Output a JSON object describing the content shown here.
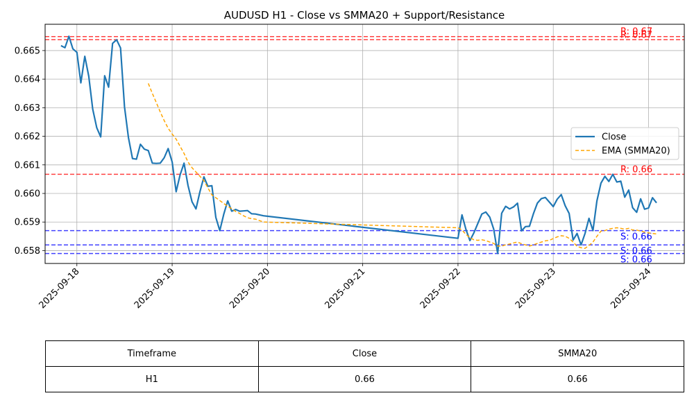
{
  "chart_data": {
    "type": "line",
    "title": "AUDUSD H1 - Close vs SMMA20 + Support/Resistance",
    "xlabel": "",
    "ylabel": "",
    "xlim": [
      "2025-09-17 16:00",
      "2025-09-24 09:00"
    ],
    "ylim": [
      0.65755,
      0.66592
    ],
    "grid": true,
    "x_ticks": [
      "2025-09-18",
      "2025-09-19",
      "2025-09-20",
      "2025-09-21",
      "2025-09-22",
      "2025-09-23",
      "2025-09-24"
    ],
    "y_ticks": [
      "0.658",
      "0.659",
      "0.660",
      "0.661",
      "0.662",
      "0.663",
      "0.664",
      "0.665"
    ],
    "legend_position": "center-right",
    "series": [
      {
        "name": "Close",
        "color": "#1f77b4",
        "style": "solid",
        "x": [
          "2025-09-17 20:00",
          "2025-09-17 21:00",
          "2025-09-17 22:00",
          "2025-09-17 23:00",
          "2025-09-18 00:00",
          "2025-09-18 01:00",
          "2025-09-18 02:00",
          "2025-09-18 03:00",
          "2025-09-18 04:00",
          "2025-09-18 05:00",
          "2025-09-18 06:00",
          "2025-09-18 07:00",
          "2025-09-18 08:00",
          "2025-09-18 09:00",
          "2025-09-18 10:00",
          "2025-09-18 11:00",
          "2025-09-18 12:00",
          "2025-09-18 13:00",
          "2025-09-18 14:00",
          "2025-09-18 15:00",
          "2025-09-18 16:00",
          "2025-09-18 17:00",
          "2025-09-18 18:00",
          "2025-09-18 19:00",
          "2025-09-18 20:00",
          "2025-09-18 21:00",
          "2025-09-18 22:00",
          "2025-09-18 23:00",
          "2025-09-19 00:00",
          "2025-09-19 01:00",
          "2025-09-19 02:00",
          "2025-09-19 03:00",
          "2025-09-19 04:00",
          "2025-09-19 05:00",
          "2025-09-19 06:00",
          "2025-09-19 07:00",
          "2025-09-19 08:00",
          "2025-09-19 09:00",
          "2025-09-19 10:00",
          "2025-09-19 11:00",
          "2025-09-19 12:00",
          "2025-09-19 13:00",
          "2025-09-19 14:00",
          "2025-09-19 15:00",
          "2025-09-19 16:00",
          "2025-09-19 17:00",
          "2025-09-19 18:00",
          "2025-09-19 19:00",
          "2025-09-19 20:00",
          "2025-09-19 21:00",
          "2025-09-19 22:00",
          "2025-09-19 23:00",
          "2025-09-22 00:00",
          "2025-09-22 01:00",
          "2025-09-22 02:00",
          "2025-09-22 03:00",
          "2025-09-22 04:00",
          "2025-09-22 05:00",
          "2025-09-22 06:00",
          "2025-09-22 07:00",
          "2025-09-22 08:00",
          "2025-09-22 09:00",
          "2025-09-22 10:00",
          "2025-09-22 11:00",
          "2025-09-22 12:00",
          "2025-09-22 13:00",
          "2025-09-22 14:00",
          "2025-09-22 15:00",
          "2025-09-22 16:00",
          "2025-09-22 17:00",
          "2025-09-22 18:00",
          "2025-09-22 19:00",
          "2025-09-22 20:00",
          "2025-09-22 21:00",
          "2025-09-22 22:00",
          "2025-09-22 23:00",
          "2025-09-23 00:00",
          "2025-09-23 01:00",
          "2025-09-23 02:00",
          "2025-09-23 03:00",
          "2025-09-23 04:00",
          "2025-09-23 05:00",
          "2025-09-23 06:00",
          "2025-09-23 07:00",
          "2025-09-23 08:00",
          "2025-09-23 09:00",
          "2025-09-23 10:00",
          "2025-09-23 11:00",
          "2025-09-23 12:00",
          "2025-09-23 13:00",
          "2025-09-23 14:00",
          "2025-09-23 15:00",
          "2025-09-23 16:00",
          "2025-09-23 17:00",
          "2025-09-23 18:00",
          "2025-09-23 19:00",
          "2025-09-23 20:00",
          "2025-09-23 21:00",
          "2025-09-23 22:00",
          "2025-09-23 23:00",
          "2025-09-24 00:00",
          "2025-09-24 01:00",
          "2025-09-24 02:00"
        ],
        "values": [
          0.66517,
          0.6651,
          0.6655,
          0.66506,
          0.66494,
          0.66387,
          0.6648,
          0.6641,
          0.66295,
          0.6623,
          0.66198,
          0.66412,
          0.66372,
          0.66525,
          0.66538,
          0.66509,
          0.66303,
          0.66195,
          0.66122,
          0.6612,
          0.66172,
          0.66155,
          0.6615,
          0.66106,
          0.66105,
          0.66106,
          0.66125,
          0.66157,
          0.6611,
          0.66006,
          0.66065,
          0.66106,
          0.66028,
          0.65971,
          0.65946,
          0.66006,
          0.66058,
          0.66025,
          0.66027,
          0.65916,
          0.6587,
          0.65927,
          0.65974,
          0.65938,
          0.65944,
          0.65938,
          0.65939,
          0.6594,
          0.65929,
          0.65928,
          0.65925,
          0.65922,
          0.65843,
          0.65925,
          0.65874,
          0.65835,
          0.65862,
          0.65895,
          0.65928,
          0.65935,
          0.65917,
          0.65875,
          0.6579,
          0.65931,
          0.65955,
          0.65946,
          0.65953,
          0.65966,
          0.65869,
          0.65884,
          0.65885,
          0.65929,
          0.65966,
          0.65982,
          0.65986,
          0.6597,
          0.65954,
          0.6598,
          0.65996,
          0.65957,
          0.6593,
          0.65837,
          0.6586,
          0.6582,
          0.6586,
          0.65913,
          0.6587,
          0.65974,
          0.66036,
          0.6606,
          0.66042,
          0.66067,
          0.6604,
          0.66043,
          0.65987,
          0.66012,
          0.6595,
          0.65934,
          0.65981,
          0.65945,
          0.65949,
          0.65985,
          0.65967
        ]
      },
      {
        "name": "EMA (SMMA20)",
        "color": "#ffa500",
        "style": "dashed",
        "x": [
          "2025-09-18 18:00",
          "2025-09-18 19:00",
          "2025-09-18 20:00",
          "2025-09-18 21:00",
          "2025-09-18 22:00",
          "2025-09-18 23:00",
          "2025-09-19 00:00",
          "2025-09-19 01:00",
          "2025-09-19 02:00",
          "2025-09-19 03:00",
          "2025-09-19 04:00",
          "2025-09-19 05:00",
          "2025-09-19 06:00",
          "2025-09-19 07:00",
          "2025-09-19 08:00",
          "2025-09-19 09:00",
          "2025-09-19 10:00",
          "2025-09-19 11:00",
          "2025-09-19 12:00",
          "2025-09-19 13:00",
          "2025-09-19 14:00",
          "2025-09-19 15:00",
          "2025-09-19 16:00",
          "2025-09-19 17:00",
          "2025-09-19 18:00",
          "2025-09-19 19:00",
          "2025-09-19 20:00",
          "2025-09-19 21:00",
          "2025-09-19 22:00",
          "2025-09-19 23:00",
          "2025-09-22 00:00",
          "2025-09-22 01:00",
          "2025-09-22 02:00",
          "2025-09-22 03:00",
          "2025-09-22 04:00",
          "2025-09-22 05:00",
          "2025-09-22 06:00",
          "2025-09-22 07:00",
          "2025-09-22 08:00",
          "2025-09-22 09:00",
          "2025-09-22 10:00",
          "2025-09-22 11:00",
          "2025-09-22 12:00",
          "2025-09-22 13:00",
          "2025-09-22 14:00",
          "2025-09-22 15:00",
          "2025-09-22 16:00",
          "2025-09-22 17:00",
          "2025-09-22 18:00",
          "2025-09-22 19:00",
          "2025-09-22 20:00",
          "2025-09-22 21:00",
          "2025-09-22 22:00",
          "2025-09-22 23:00",
          "2025-09-23 00:00",
          "2025-09-23 01:00",
          "2025-09-23 02:00",
          "2025-09-23 03:00",
          "2025-09-23 04:00",
          "2025-09-23 05:00",
          "2025-09-23 06:00",
          "2025-09-23 07:00",
          "2025-09-23 08:00",
          "2025-09-23 09:00",
          "2025-09-23 10:00",
          "2025-09-23 11:00",
          "2025-09-23 12:00",
          "2025-09-23 13:00",
          "2025-09-23 14:00",
          "2025-09-23 15:00",
          "2025-09-23 16:00",
          "2025-09-23 17:00",
          "2025-09-23 18:00",
          "2025-09-23 19:00",
          "2025-09-23 20:00",
          "2025-09-23 21:00",
          "2025-09-23 22:00",
          "2025-09-23 23:00",
          "2025-09-24 00:00",
          "2025-09-24 01:00",
          "2025-09-24 02:00"
        ],
        "values": [
          0.66385,
          0.6635,
          0.66318,
          0.66285,
          0.66255,
          0.66228,
          0.66208,
          0.6619,
          0.66165,
          0.6614,
          0.6611,
          0.6609,
          0.66075,
          0.6606,
          0.66045,
          0.6602,
          0.65995,
          0.65985,
          0.65975,
          0.65965,
          0.65955,
          0.65947,
          0.65937,
          0.6593,
          0.65922,
          0.65915,
          0.65912,
          0.6591,
          0.65905,
          0.659,
          0.6588,
          0.65872,
          0.65857,
          0.65845,
          0.65838,
          0.65836,
          0.65838,
          0.65835,
          0.6583,
          0.65825,
          0.65816,
          0.65816,
          0.6582,
          0.65823,
          0.65827,
          0.6583,
          0.65824,
          0.6582,
          0.65816,
          0.6582,
          0.65825,
          0.6583,
          0.65834,
          0.65836,
          0.65842,
          0.65848,
          0.65852,
          0.6585,
          0.65843,
          0.6583,
          0.65815,
          0.6581,
          0.65808,
          0.65818,
          0.6583,
          0.6585,
          0.65868,
          0.6587,
          0.65875,
          0.65878,
          0.6588,
          0.65878,
          0.65875,
          0.65878,
          0.65872,
          0.65872,
          0.65868,
          0.65865,
          0.65862,
          0.6586,
          0.65858
        ]
      }
    ],
    "hlines": [
      {
        "kind": "resistance",
        "value": 0.66549,
        "label": "R: 0.67",
        "color": "#ff0000"
      },
      {
        "kind": "resistance",
        "value": 0.66538,
        "label": "R: 0.67",
        "color": "#ff0000"
      },
      {
        "kind": "resistance",
        "value": 0.66067,
        "label": "R: 0.66",
        "color": "#ff0000"
      },
      {
        "kind": "support",
        "value": 0.6587,
        "label": "S: 0.66",
        "color": "#0000ff"
      },
      {
        "kind": "support",
        "value": 0.6582,
        "label": "S: 0.66",
        "color": "#0000ff"
      },
      {
        "kind": "support",
        "value": 0.6579,
        "label": "S: 0.66",
        "color": "#0000ff"
      }
    ]
  },
  "table": {
    "headers": [
      "Timeframe",
      "Close",
      "SMMA20"
    ],
    "rows": [
      [
        "H1",
        "0.66",
        "0.66"
      ]
    ]
  }
}
